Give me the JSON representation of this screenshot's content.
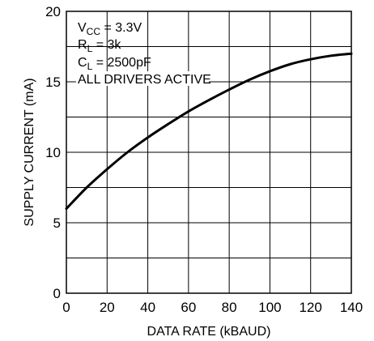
{
  "chart_data": {
    "type": "line",
    "title": "",
    "xlabel": "DATA RATE (kBAUD)",
    "ylabel": "SUPPLY CURRENT (mA)",
    "xlim": [
      0,
      140
    ],
    "ylim": [
      0,
      20
    ],
    "x_ticks": [
      "0",
      "20",
      "40",
      "60",
      "80",
      "100",
      "120",
      "140"
    ],
    "y_ticks": [
      "0",
      "5",
      "10",
      "15",
      "20"
    ],
    "grid": true,
    "annotations": {
      "vcc_main": "V",
      "vcc_sub": "CC",
      "vcc_value": " = 3.3V",
      "rl_main": "R",
      "rl_sub": "L",
      "rl_value": " = 3k",
      "cl_main": "C",
      "cl_sub": "L",
      "cl_value": " = 2500pF",
      "drivers": "ALL DRIVERS ACTIVE"
    },
    "series": [
      {
        "x": [
          0,
          10,
          20,
          30,
          40,
          50,
          60,
          70,
          80,
          90,
          100,
          110,
          120,
          130,
          140
        ],
        "values": [
          6.0,
          7.5,
          8.8,
          10.0,
          11.05,
          12.0,
          12.9,
          13.7,
          14.45,
          15.15,
          15.75,
          16.25,
          16.6,
          16.85,
          17.0
        ]
      }
    ]
  }
}
